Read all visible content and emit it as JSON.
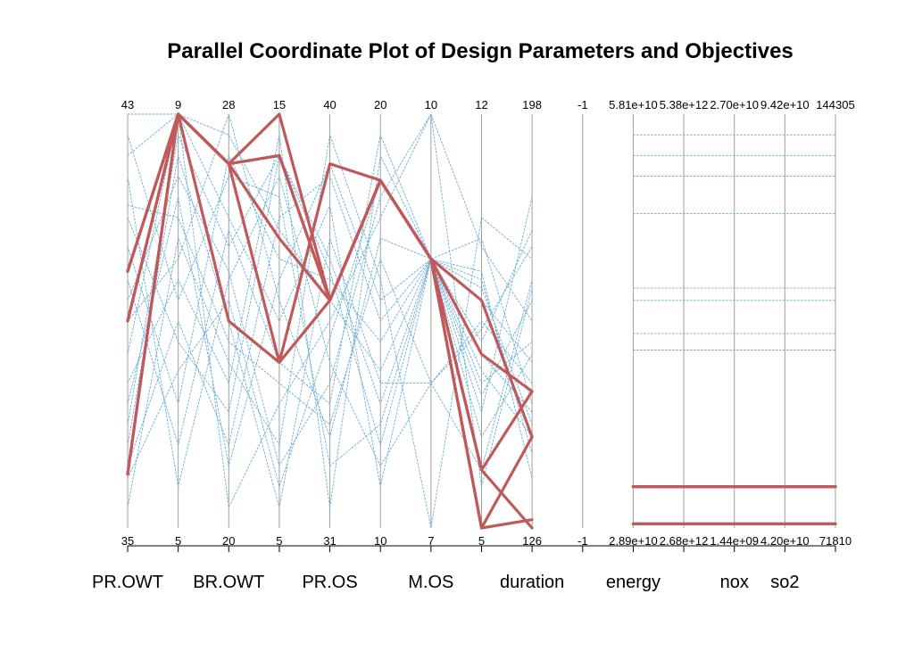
{
  "chart_data": {
    "type": "parallel-coordinates",
    "title": "Parallel Coordinate Plot of Design Parameters and Objectives",
    "axes": [
      {
        "key": "PR.OWT",
        "top": "43",
        "bottom": "35",
        "label": "PR.OWT"
      },
      {
        "key": "a2",
        "top": "9",
        "bottom": "5",
        "label": ""
      },
      {
        "key": "BR.OWT",
        "top": "28",
        "bottom": "20",
        "label": "BR.OWT"
      },
      {
        "key": "a4",
        "top": "15",
        "bottom": "5",
        "label": ""
      },
      {
        "key": "PR.OS",
        "top": "40",
        "bottom": "31",
        "label": "PR.OS"
      },
      {
        "key": "a6",
        "top": "20",
        "bottom": "10",
        "label": ""
      },
      {
        "key": "M.OS",
        "top": "10",
        "bottom": "7",
        "label": "M.OS"
      },
      {
        "key": "a8",
        "top": "12",
        "bottom": "5",
        "label": ""
      },
      {
        "key": "duration",
        "top": "198",
        "bottom": "126",
        "label": "duration"
      },
      {
        "key": "a10",
        "top": "-1",
        "bottom": "-1",
        "label": ""
      },
      {
        "key": "energy",
        "top": "5.81e+10",
        "bottom": "2.89e+10",
        "label": "energy"
      },
      {
        "key": "a12",
        "top": "5.38e+12",
        "bottom": "2.68e+12",
        "label": ""
      },
      {
        "key": "nox",
        "top": "2.70e+10",
        "bottom": "1.44e+09",
        "label": "nox"
      },
      {
        "key": "so2",
        "top": "9.42e+10",
        "bottom": "4.20e+10",
        "label": "so2"
      },
      {
        "key": "a15",
        "top": "144305",
        "bottom": "71810",
        "label": ""
      }
    ],
    "colors": {
      "background_lines": "#6aaed6",
      "highlight_lines": "#c05a5a",
      "axis_lines": "#a0a0a0"
    },
    "background_series": [
      {
        "values": [
          0.9,
          1.0,
          0.95,
          0.72,
          0.55,
          0.38,
          0.65,
          0.7,
          0.3,
          null,
          0.95,
          0.95,
          0.95,
          0.95,
          0.95
        ]
      },
      {
        "values": [
          0.12,
          0.38,
          0.55,
          0.1,
          0.46,
          0.84,
          0.65,
          0.22,
          0.42,
          null,
          0.9,
          0.9,
          0.9,
          0.9,
          0.9
        ]
      },
      {
        "values": [
          0.5,
          0.65,
          1.0,
          0.55,
          0.22,
          0.7,
          0.65,
          0.6,
          0.18,
          null,
          0.85,
          0.85,
          0.85,
          0.85,
          0.85
        ]
      },
      {
        "values": [
          0.75,
          0.45,
          0.28,
          0.9,
          0.62,
          0.2,
          0.65,
          0.32,
          0.55,
          null,
          0.76,
          0.76,
          0.76,
          0.76,
          0.76
        ]
      },
      {
        "values": [
          0.3,
          0.8,
          0.15,
          0.6,
          0.88,
          0.55,
          0.65,
          0.45,
          0.72,
          null,
          0.58,
          0.58,
          0.58,
          0.58,
          0.58
        ]
      },
      {
        "values": [
          0.6,
          0.2,
          0.72,
          0.4,
          0.3,
          0.95,
          0.65,
          0.55,
          0.4,
          null,
          0.55,
          0.55,
          0.55,
          0.55,
          0.55
        ]
      },
      {
        "values": [
          0.2,
          0.9,
          0.5,
          0.05,
          0.7,
          0.35,
          0.35,
          0.14,
          0.6,
          null,
          0.47,
          0.47,
          0.47,
          0.47,
          0.47
        ]
      },
      {
        "values": [
          0.95,
          0.55,
          0.85,
          0.8,
          0.15,
          0.25,
          0.65,
          0.38,
          0.22,
          null,
          0.43,
          0.43,
          0.43,
          0.43,
          0.43
        ]
      },
      {
        "values": [
          0.42,
          1.0,
          0.05,
          0.3,
          0.5,
          0.75,
          1.0,
          0.68,
          0.5,
          null,
          0.01,
          0.01,
          0.01,
          0.01,
          0.01
        ]
      },
      {
        "values": [
          0.85,
          0.1,
          0.6,
          0.85,
          0.4,
          0.15,
          0.35,
          0.5,
          0.35,
          null,
          0.01,
          0.01,
          0.01,
          0.01,
          0.01
        ]
      },
      {
        "values": [
          0.05,
          0.7,
          0.4,
          0.2,
          0.95,
          0.6,
          0.0,
          0.75,
          0.65,
          null,
          0.01,
          0.01,
          0.01,
          0.01,
          0.01
        ]
      },
      {
        "values": [
          0.68,
          0.3,
          0.9,
          0.65,
          0.6,
          0.45,
          0.65,
          0.28,
          0.8,
          null,
          0.01,
          0.01,
          0.01,
          0.01,
          0.01
        ]
      },
      {
        "values": [
          0.35,
          0.6,
          0.35,
          0.95,
          0.05,
          0.9,
          0.65,
          0.42,
          0.28,
          null,
          0.01,
          0.01,
          0.01,
          0.01,
          0.01
        ]
      },
      {
        "values": [
          1.0,
          1.0,
          0.75,
          0.5,
          0.78,
          0.1,
          0.65,
          0.62,
          0.12,
          null,
          0.01,
          0.01,
          0.01,
          0.01,
          0.01
        ]
      },
      {
        "values": [
          0.55,
          0.85,
          0.62,
          0.15,
          0.35,
          0.8,
          1.0,
          0.1,
          0.58,
          null,
          0.01,
          0.01,
          0.01,
          0.01,
          0.01
        ]
      },
      {
        "values": [
          0.15,
          0.5,
          0.2,
          0.75,
          0.85,
          0.5,
          0.65,
          0.35,
          0.45,
          null,
          0.01,
          0.01,
          0.01,
          0.01,
          0.01
        ]
      },
      {
        "values": [
          0.78,
          0.75,
          0.45,
          0.35,
          0.25,
          0.65,
          0.35,
          0.48,
          0.68,
          null,
          0.01,
          0.01,
          0.01,
          0.01,
          0.01
        ]
      },
      {
        "values": [
          0.25,
          0.95,
          0.68,
          0.9,
          0.65,
          0.3,
          0.65,
          0.58,
          0.25,
          null,
          0.01,
          0.01,
          0.01,
          0.01,
          0.01
        ]
      }
    ],
    "highlight_series": [
      {
        "values": [
          0.62,
          1.0,
          0.88,
          1.0,
          0.55,
          0.84,
          0.65,
          0.14,
          0.0,
          null,
          0.1,
          0.1,
          0.1,
          0.1,
          0.1
        ]
      },
      {
        "values": [
          0.5,
          1.0,
          0.88,
          0.9,
          0.55,
          0.84,
          0.65,
          0.55,
          0.22,
          null,
          0.1,
          0.1,
          0.1,
          0.1,
          0.1
        ]
      },
      {
        "values": [
          0.13,
          1.0,
          0.5,
          0.4,
          0.55,
          0.84,
          0.65,
          0.0,
          0.22,
          null,
          0.1,
          0.1,
          0.1,
          0.1,
          0.1
        ]
      },
      {
        "values": [
          0.13,
          1.0,
          0.88,
          0.7,
          0.55,
          0.84,
          0.65,
          0.42,
          0.33,
          null,
          0.1,
          0.1,
          0.1,
          0.1,
          0.1
        ]
      },
      {
        "values": [
          0.62,
          1.0,
          0.88,
          0.4,
          0.88,
          0.84,
          0.65,
          0.14,
          0.33,
          null,
          0.01,
          0.01,
          0.01,
          0.01,
          0.01
        ]
      },
      {
        "values": [
          0.5,
          1.0,
          0.88,
          0.9,
          0.55,
          0.84,
          0.65,
          0.0,
          0.02,
          null,
          0.01,
          0.01,
          0.01,
          0.01,
          0.01
        ]
      }
    ]
  }
}
